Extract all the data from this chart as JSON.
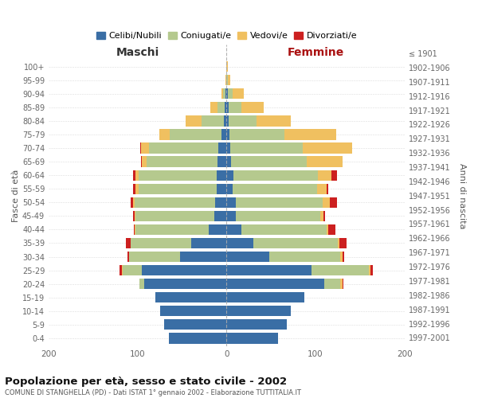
{
  "age_groups": [
    "0-4",
    "5-9",
    "10-14",
    "15-19",
    "20-24",
    "25-29",
    "30-34",
    "35-39",
    "40-44",
    "45-49",
    "50-54",
    "55-59",
    "60-64",
    "65-69",
    "70-74",
    "75-79",
    "80-84",
    "85-89",
    "90-94",
    "95-99",
    "100+"
  ],
  "birth_years": [
    "1997-2001",
    "1992-1996",
    "1987-1991",
    "1982-1986",
    "1977-1981",
    "1972-1976",
    "1967-1971",
    "1962-1966",
    "1957-1961",
    "1952-1956",
    "1947-1951",
    "1942-1946",
    "1937-1941",
    "1932-1936",
    "1927-1931",
    "1922-1926",
    "1917-1921",
    "1912-1916",
    "1907-1911",
    "1902-1906",
    "≤ 1901"
  ],
  "maschi": {
    "celibi": [
      65,
      70,
      75,
      80,
      93,
      95,
      52,
      40,
      20,
      14,
      13,
      11,
      11,
      10,
      9,
      6,
      3,
      2,
      1,
      0,
      0
    ],
    "coniugati": [
      0,
      0,
      0,
      0,
      5,
      22,
      58,
      68,
      82,
      88,
      90,
      88,
      88,
      80,
      78,
      58,
      25,
      8,
      3,
      0,
      0
    ],
    "vedovi": [
      0,
      0,
      0,
      0,
      0,
      1,
      0,
      0,
      1,
      1,
      2,
      3,
      3,
      5,
      9,
      12,
      18,
      8,
      2,
      1,
      0
    ],
    "divorziati": [
      0,
      0,
      0,
      0,
      0,
      2,
      1,
      5,
      1,
      2,
      3,
      3,
      3,
      1,
      1,
      0,
      0,
      0,
      0,
      0,
      0
    ]
  },
  "femmine": {
    "nubili": [
      58,
      68,
      72,
      87,
      110,
      95,
      48,
      30,
      17,
      10,
      10,
      7,
      8,
      5,
      4,
      3,
      2,
      2,
      1,
      0,
      0
    ],
    "coniugate": [
      0,
      0,
      0,
      0,
      18,
      65,
      80,
      95,
      95,
      95,
      98,
      95,
      95,
      85,
      82,
      62,
      32,
      15,
      6,
      1,
      0
    ],
    "vedove": [
      0,
      0,
      0,
      0,
      2,
      2,
      2,
      2,
      2,
      4,
      8,
      10,
      15,
      40,
      55,
      58,
      38,
      25,
      12,
      3,
      1
    ],
    "divorziate": [
      0,
      0,
      0,
      0,
      1,
      2,
      2,
      8,
      8,
      2,
      8,
      2,
      6,
      0,
      0,
      0,
      0,
      0,
      0,
      0,
      0
    ]
  },
  "colors": {
    "celibi": "#3a6ea5",
    "coniugati": "#b5c98e",
    "vedovi": "#f0c060",
    "divorziati": "#cc2020"
  },
  "title": "Popolazione per età, sesso e stato civile - 2002",
  "subtitle": "COMUNE DI STANGHELLA (PD) - Dati ISTAT 1° gennaio 2002 - Elaborazione TUTTITALIA.IT",
  "xlabel_left": "Maschi",
  "xlabel_right": "Femmine",
  "ylabel_left": "Fasce di età",
  "ylabel_right": "Anni di nascita",
  "xlim": 200,
  "background_color": "#ffffff",
  "grid_color": "#cccccc",
  "legend_labels": [
    "Celibi/Nubili",
    "Coniugati/e",
    "Vedovi/e",
    "Divorziati/e"
  ]
}
